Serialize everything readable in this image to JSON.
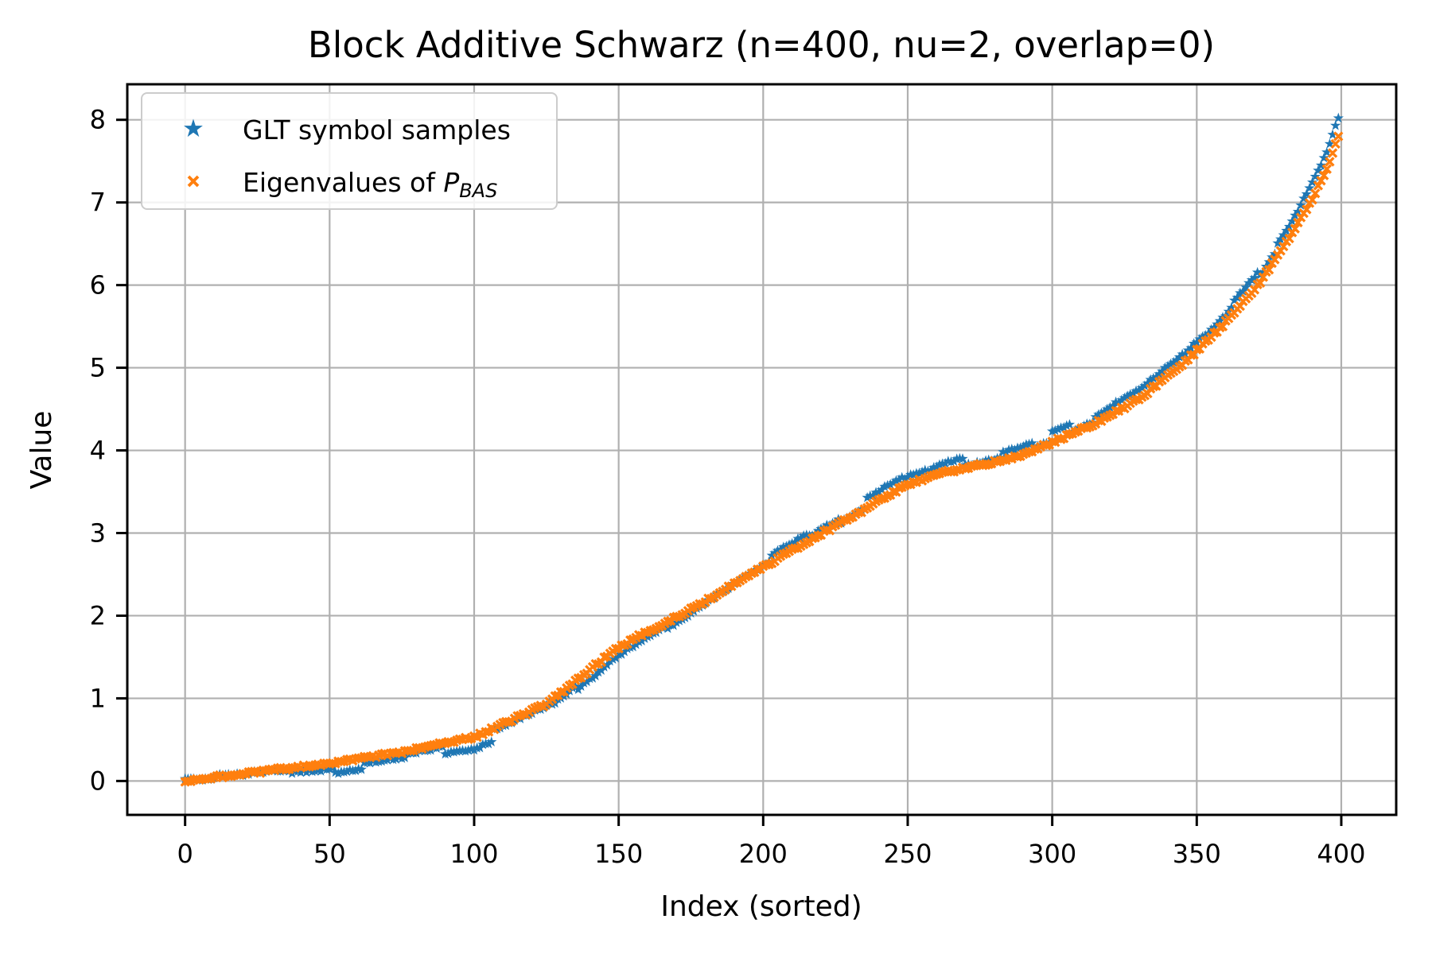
{
  "chart_data": {
    "type": "scatter",
    "title": "Block Additive Schwarz (n=400, nu=2, overlap=0)",
    "xlabel": "Index (sorted)",
    "ylabel": "Value",
    "xlim": [
      -20,
      419
    ],
    "ylim": [
      -0.41,
      8.43
    ],
    "xticks": [
      0,
      50,
      100,
      150,
      200,
      250,
      300,
      350,
      400
    ],
    "yticks": [
      0,
      1,
      2,
      3,
      4,
      5,
      6,
      7,
      8
    ],
    "grid": true,
    "legend": {
      "location": "upper left",
      "frame": true
    },
    "n_points_per_series": 400,
    "x_values_description": "integer indices 0..399, both series sorted ascending",
    "series": [
      {
        "name": "GLT symbol samples",
        "marker": "star",
        "color": "#1f77b4",
        "value_range": [
          -0.07,
          8.02
        ],
        "curve_control_points": {
          "x": [
            0,
            25,
            50,
            75,
            100,
            125,
            150,
            175,
            200,
            225,
            250,
            262,
            275,
            288,
            300,
            315,
            330,
            345,
            360,
            372,
            382,
            390,
            395,
            399
          ],
          "y": [
            0.02,
            0.06,
            0.13,
            0.26,
            0.44,
            0.85,
            1.55,
            2.08,
            2.65,
            3.15,
            3.66,
            3.8,
            3.9,
            4.0,
            4.18,
            4.42,
            4.72,
            5.15,
            5.68,
            6.18,
            6.72,
            7.22,
            7.6,
            8.0
          ]
        },
        "noise": {
          "style": "staircase",
          "run_length": [
            6,
            16
          ],
          "amplitude": 0.065,
          "jitter": 0.015
        }
      },
      {
        "name": "Eigenvalues of P_BAS",
        "label_rich": {
          "prefix": "Eigenvalues of ",
          "variable": "P",
          "subscript": "BAS"
        },
        "marker": "x",
        "color": "#ff7f0e",
        "value_range": [
          -0.04,
          7.8
        ],
        "offset_from_first_series_control_points": {
          "x": [
            0,
            25,
            50,
            75,
            100,
            125,
            150,
            165,
            180,
            200,
            250,
            300,
            330,
            350,
            370,
            385,
            395,
            399
          ],
          "y": [
            -0.02,
            0.05,
            0.08,
            0.09,
            0.09,
            0.08,
            0.07,
            0.03,
            -0.02,
            -0.06,
            -0.07,
            -0.08,
            -0.1,
            -0.12,
            -0.14,
            -0.16,
            -0.19,
            -0.21
          ]
        },
        "noise": {
          "style": "jitter",
          "jitter": 0.018
        }
      }
    ]
  },
  "styles": {
    "grid_color": "#b0b0b0",
    "spine_color": "#000000",
    "legend_border_color": "#cccccc",
    "legend_background": "#ffffff",
    "series_blue": "#1f77b4",
    "series_orange": "#ff7f0e"
  }
}
